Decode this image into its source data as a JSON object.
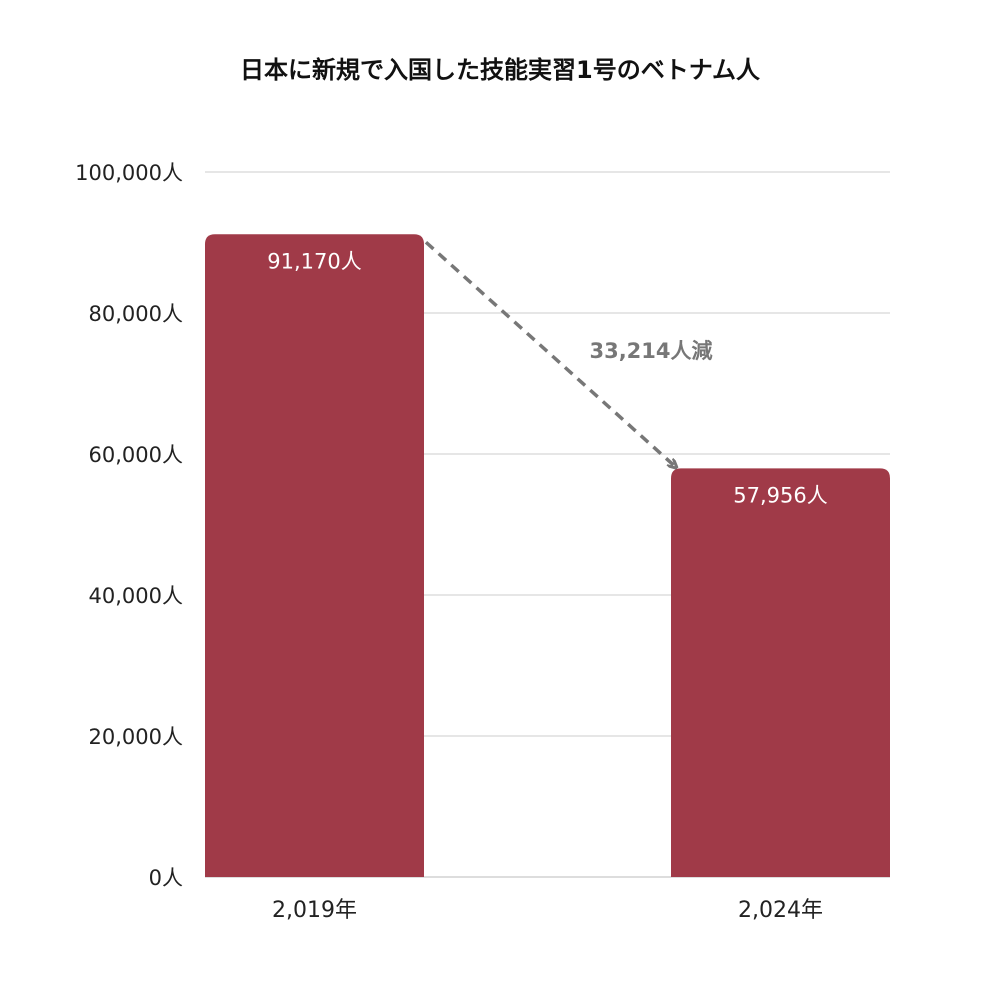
{
  "chart_data": {
    "type": "bar",
    "title": "日本に新規で入国した技能実習1号のベトナム人",
    "categories": [
      "2,019年",
      "2,024年"
    ],
    "values": [
      91170,
      57956
    ],
    "data_labels": [
      "91,170人",
      "57,956人"
    ],
    "y_ticks": [
      0,
      20000,
      40000,
      60000,
      80000,
      100000
    ],
    "y_tick_labels": [
      "0人",
      "20,000人",
      "40,000人",
      "60,000人",
      "80,000人",
      "100,000人"
    ],
    "ylim": [
      0,
      100000
    ],
    "grid": true,
    "legend": "none",
    "bar_color": "#a03a48",
    "annotation": {
      "text": "33,214人減",
      "from_category": 0,
      "to_category": 1,
      "color": "#777777"
    }
  }
}
